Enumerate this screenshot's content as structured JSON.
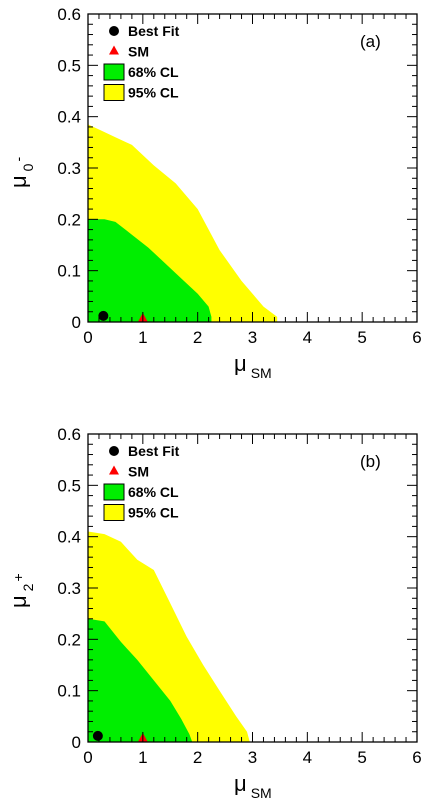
{
  "chart_data": [
    {
      "type": "contour",
      "panel_label": "(a)",
      "xlabel": {
        "main": "μ",
        "sub": "SM",
        "sup": ""
      },
      "ylabel": {
        "main": "μ",
        "sub": "0",
        "sup": "-"
      },
      "xlim": [
        0,
        6
      ],
      "ylim": [
        0,
        0.6
      ],
      "xticks": [
        "0",
        "1",
        "2",
        "3",
        "4",
        "5",
        "6"
      ],
      "yticks": [
        "0",
        "0.1",
        "0.2",
        "0.3",
        "0.4",
        "0.5",
        "0.6"
      ],
      "legend": {
        "position": "top-left",
        "entries": [
          {
            "label": "Best Fit",
            "symbol": "circle",
            "color": "#000000"
          },
          {
            "label": "SM",
            "symbol": "triangle",
            "color": "#ff0000"
          },
          {
            "label": "68% CL",
            "symbol": "box",
            "color": "#00ee00"
          },
          {
            "label": "95% CL",
            "symbol": "box",
            "color": "#ffff00"
          }
        ]
      },
      "best_fit": {
        "x": 0.28,
        "y": 0.008
      },
      "sm_point": {
        "x": 1.0,
        "y": 0.0
      },
      "region_95": {
        "color": "#ffff00",
        "points": [
          [
            0,
            0
          ],
          [
            0,
            0.385
          ],
          [
            0.2,
            0.375
          ],
          [
            0.5,
            0.36
          ],
          [
            0.8,
            0.345
          ],
          [
            1.2,
            0.305
          ],
          [
            1.6,
            0.27
          ],
          [
            2.0,
            0.22
          ],
          [
            2.4,
            0.14
          ],
          [
            2.8,
            0.08
          ],
          [
            3.2,
            0.03
          ],
          [
            3.45,
            0.01
          ],
          [
            3.45,
            0
          ]
        ]
      },
      "region_68": {
        "color": "#00ee00",
        "points": [
          [
            0,
            0
          ],
          [
            0,
            0.2
          ],
          [
            0.3,
            0.2
          ],
          [
            0.5,
            0.195
          ],
          [
            0.8,
            0.17
          ],
          [
            1.1,
            0.145
          ],
          [
            1.4,
            0.115
          ],
          [
            1.7,
            0.085
          ],
          [
            2.0,
            0.055
          ],
          [
            2.2,
            0.03
          ],
          [
            2.25,
            0.01
          ],
          [
            2.25,
            0
          ]
        ]
      }
    },
    {
      "type": "contour",
      "panel_label": "(b)",
      "xlabel": {
        "main": "μ",
        "sub": "SM",
        "sup": ""
      },
      "ylabel": {
        "main": "μ",
        "sub": "2",
        "sup": "+"
      },
      "xlim": [
        0,
        6
      ],
      "ylim": [
        0,
        0.6
      ],
      "xticks": [
        "0",
        "1",
        "2",
        "3",
        "4",
        "5",
        "6"
      ],
      "yticks": [
        "0",
        "0.1",
        "0.2",
        "0.3",
        "0.4",
        "0.5",
        "0.6"
      ],
      "legend": {
        "position": "top-left",
        "entries": [
          {
            "label": "Best Fit",
            "symbol": "circle",
            "color": "#000000"
          },
          {
            "label": "SM",
            "symbol": "triangle",
            "color": "#ff0000"
          },
          {
            "label": "68% CL",
            "symbol": "box",
            "color": "#00ee00"
          },
          {
            "label": "95% CL",
            "symbol": "box",
            "color": "#ffff00"
          }
        ]
      },
      "best_fit": {
        "x": 0.18,
        "y": 0.008
      },
      "sm_point": {
        "x": 1.0,
        "y": 0.0
      },
      "region_95": {
        "color": "#ffff00",
        "points": [
          [
            0,
            0
          ],
          [
            0,
            0.41
          ],
          [
            0.3,
            0.405
          ],
          [
            0.6,
            0.39
          ],
          [
            0.9,
            0.355
          ],
          [
            1.2,
            0.335
          ],
          [
            1.5,
            0.27
          ],
          [
            1.8,
            0.205
          ],
          [
            2.1,
            0.15
          ],
          [
            2.4,
            0.1
          ],
          [
            2.7,
            0.05
          ],
          [
            2.9,
            0.02
          ],
          [
            2.95,
            0
          ]
        ]
      },
      "region_68": {
        "color": "#00ee00",
        "points": [
          [
            0,
            0
          ],
          [
            0,
            0.24
          ],
          [
            0.3,
            0.235
          ],
          [
            0.6,
            0.195
          ],
          [
            0.9,
            0.16
          ],
          [
            1.2,
            0.12
          ],
          [
            1.5,
            0.08
          ],
          [
            1.7,
            0.045
          ],
          [
            1.85,
            0.015
          ],
          [
            1.9,
            0
          ]
        ]
      }
    }
  ]
}
